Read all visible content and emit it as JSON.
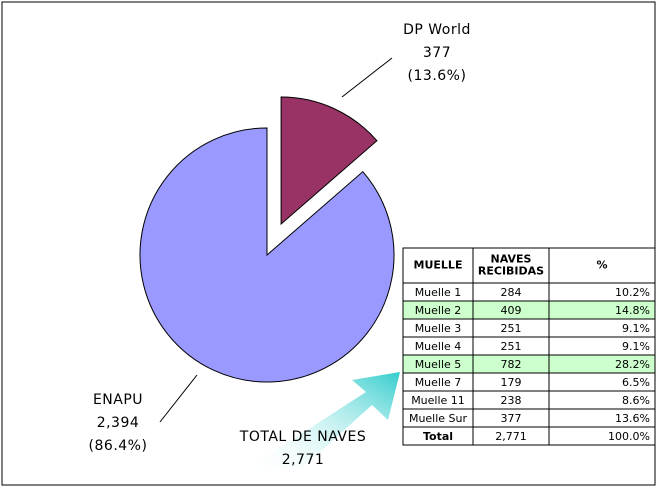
{
  "chart_data": {
    "type": "pie",
    "categories": [
      "ENAPU",
      "DP World"
    ],
    "values": [
      2394,
      377
    ],
    "value_labels": [
      "2,394",
      "377"
    ],
    "percent_labels": [
      "(86.4%)",
      "(13.6%)"
    ],
    "colors": [
      "#9999ff",
      "#993366"
    ],
    "exploded": "DP World",
    "annotation": {
      "text": "TOTAL DE NAVES",
      "value": 2771,
      "label": "2,771"
    }
  },
  "table": {
    "header": [
      "MUELLE",
      "NAVES RECIBIDAS",
      "%"
    ],
    "rows": [
      [
        "Muelle 1",
        "284",
        "10.2%"
      ],
      [
        "Muelle 2",
        "409",
        "14.8%"
      ],
      [
        "Muelle 3",
        "251",
        "9.1%"
      ],
      [
        "Muelle 4",
        "251",
        "9.1%"
      ],
      [
        "Muelle 5",
        "782",
        "28.2%"
      ],
      [
        "Muelle 7",
        "179",
        "6.5%"
      ],
      [
        "Muelle 11",
        "238",
        "8.6%"
      ],
      [
        "Muelle Sur",
        "377",
        "13.6%"
      ]
    ],
    "total": [
      "Total",
      "2,771",
      "100.0%"
    ],
    "highlight_rows": [
      1,
      4
    ],
    "highlight_color": "#ccffcc"
  }
}
